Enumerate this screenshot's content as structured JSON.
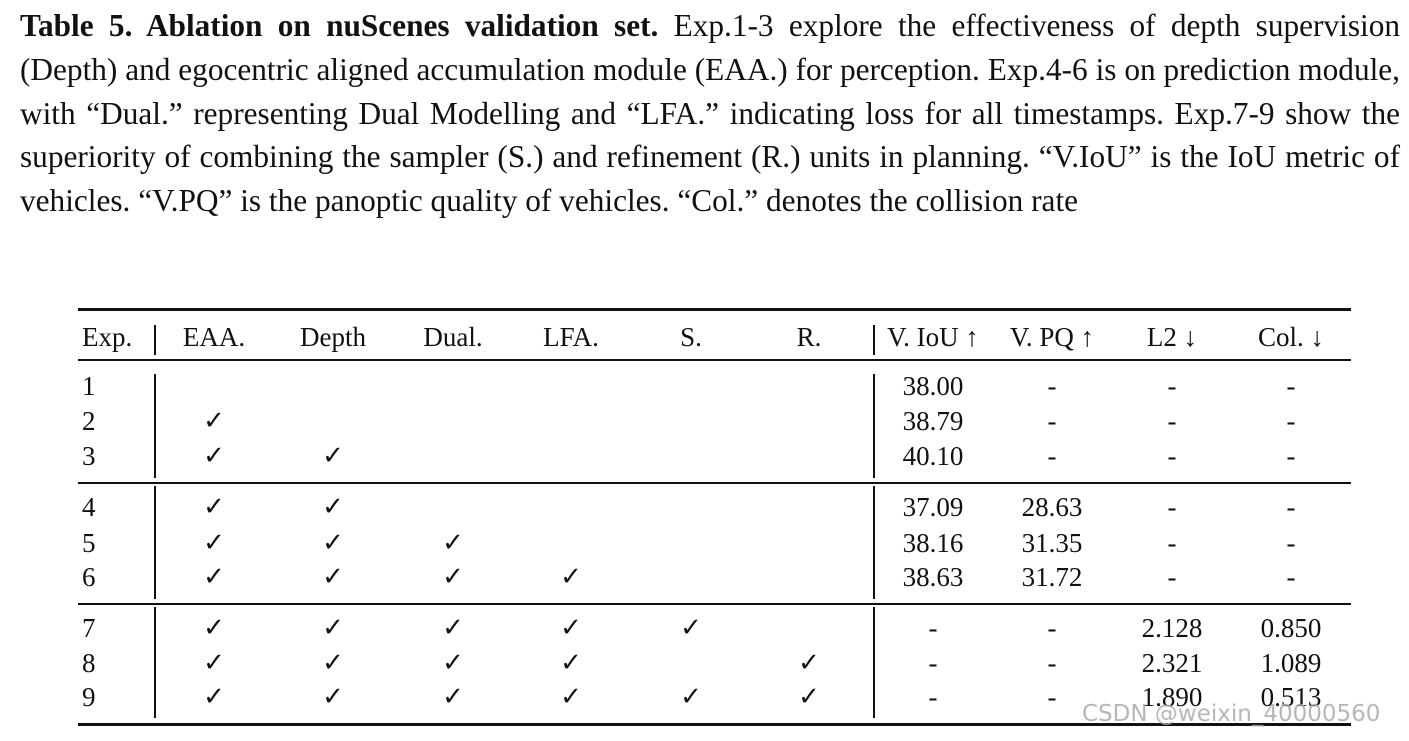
{
  "caption": {
    "title": "Table 5. Ablation on nuScenes validation set.",
    "body": "Exp.1-3 explore the effectiveness of depth supervision (Depth) and egocentric aligned accumulation module (EAA.) for perception. Exp.4-6 is on prediction module, with “Dual.” representing Dual Modelling and “LFA.” indicating loss for all timestamps. Exp.7-9 show the superiority of combining the sampler (S.) and refinement (R.) units in planning. “V.IoU” is the IoU metric of vehicles. “V.PQ” is the panoptic quality of vehicles. “Col.” denotes the collision rate"
  },
  "table": {
    "headers": [
      "Exp.",
      "EAA.",
      "Depth",
      "Dual.",
      "LFA.",
      "S.",
      "R.",
      "V. IoU ↑",
      "V. PQ ↑",
      "L2 ↓",
      "Col. ↓"
    ],
    "check_symbol": "✓",
    "rows": [
      {
        "exp": "1",
        "checks": [
          false,
          false,
          false,
          false,
          false,
          false
        ],
        "metrics": [
          "38.00",
          "-",
          "-",
          "-"
        ]
      },
      {
        "exp": "2",
        "checks": [
          true,
          false,
          false,
          false,
          false,
          false
        ],
        "metrics": [
          "38.79",
          "-",
          "-",
          "-"
        ]
      },
      {
        "exp": "3",
        "checks": [
          true,
          true,
          false,
          false,
          false,
          false
        ],
        "metrics": [
          "40.10",
          "-",
          "-",
          "-"
        ]
      },
      {
        "exp": "4",
        "checks": [
          true,
          true,
          false,
          false,
          false,
          false
        ],
        "metrics": [
          "37.09",
          "28.63",
          "-",
          "-"
        ]
      },
      {
        "exp": "5",
        "checks": [
          true,
          true,
          true,
          false,
          false,
          false
        ],
        "metrics": [
          "38.16",
          "31.35",
          "-",
          "-"
        ]
      },
      {
        "exp": "6",
        "checks": [
          true,
          true,
          true,
          true,
          false,
          false
        ],
        "metrics": [
          "38.63",
          "31.72",
          "-",
          "-"
        ]
      },
      {
        "exp": "7",
        "checks": [
          true,
          true,
          true,
          true,
          true,
          false
        ],
        "metrics": [
          "-",
          "-",
          "2.128",
          "0.850"
        ]
      },
      {
        "exp": "8",
        "checks": [
          true,
          true,
          true,
          true,
          false,
          true
        ],
        "metrics": [
          "-",
          "-",
          "2.321",
          "1.089"
        ]
      },
      {
        "exp": "9",
        "checks": [
          true,
          true,
          true,
          true,
          true,
          true
        ],
        "metrics": [
          "-",
          "-",
          "1.890",
          "0.513"
        ]
      }
    ]
  },
  "watermark": "CSDN @weixin_40000560"
}
